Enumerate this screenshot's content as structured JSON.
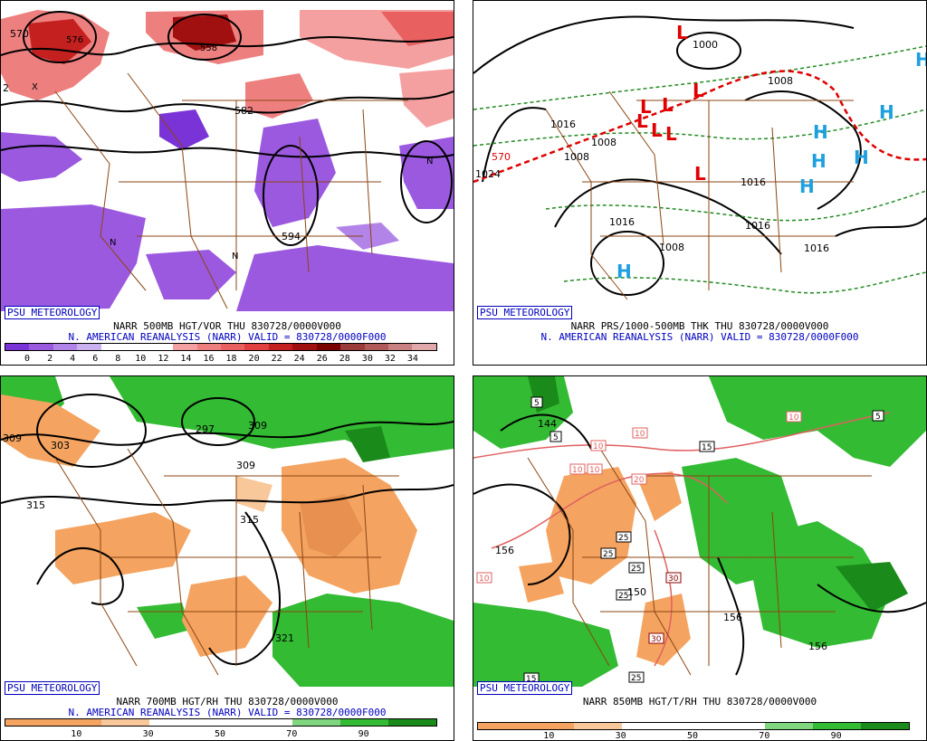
{
  "panels": [
    {
      "id": "500mb",
      "credit": "PSU METEOROLOGY",
      "line1": "NARR 500MB HGT/VOR THU 830728/0000V000",
      "line2": "N. AMERICAN REANALYSIS (NARR) VALID = 830728/0000F000",
      "colorbar": {
        "colors": [
          "#7a33d6",
          "#9b59e0",
          "#b384e8",
          "#cbb0f0",
          "#ffffff",
          "#ffffff",
          "#ffffff",
          "#f4a0a0",
          "#ee7f7f",
          "#e86060",
          "#e04040",
          "#c42020",
          "#a01010",
          "#7a0000",
          "#9a3a3a",
          "#b05a5a",
          "#c88080",
          "#e0a8a8"
        ],
        "ticks": [
          "0",
          "2",
          "4",
          "6",
          "8",
          "10",
          "12",
          "14",
          "16",
          "18",
          "20",
          "22",
          "24",
          "26",
          "28",
          "30",
          "32",
          "34"
        ]
      },
      "labels": [
        "570",
        "576",
        "558",
        "582",
        "594",
        "2",
        "X",
        "N",
        "N",
        "N"
      ]
    },
    {
      "id": "thickness",
      "credit": "PSU METEOROLOGY",
      "line1": "NARR PRS/1000-500MB THK THU 830728/0000V000",
      "line2": "N. AMERICAN REANALYSIS (NARR) VALID = 830728/0000F000",
      "labels": [
        "1000",
        "1008",
        "1016",
        "1024",
        "570",
        "1008",
        "1008",
        "1016",
        "1016",
        "1016",
        "1008",
        "1016"
      ],
      "lows": [
        "L",
        "L",
        "L",
        "L",
        "L",
        "L",
        "L",
        "L"
      ],
      "highs": [
        "H",
        "H",
        "H",
        "H",
        "H",
        "H",
        "H"
      ]
    },
    {
      "id": "700mb",
      "credit": "PSU METEOROLOGY",
      "line1": "NARR 700MB HGT/RH THU 830728/0000V000",
      "line2": "N. AMERICAN REANALYSIS (NARR) VALID = 830728/0000F000",
      "colorbar": {
        "colors": [
          "#f4a460",
          "#f4a460",
          "#f8c89a",
          "#ffffff",
          "#ffffff",
          "#ffffff",
          "#7fd67f",
          "#33bb33",
          "#1a8a1a"
        ],
        "ticks": [
          "10",
          "30",
          "50",
          "70",
          "90"
        ]
      },
      "labels": [
        "309",
        "303",
        "297",
        "309",
        "309",
        "315",
        "315",
        "321"
      ]
    },
    {
      "id": "850mb",
      "credit": "PSU METEOROLOGY",
      "line1": "NARR 850MB HGT/T/RH THU 830728/0000V000",
      "colorbar": {
        "colors": [
          "#f4a460",
          "#f4a460",
          "#f8c89a",
          "#ffffff",
          "#ffffff",
          "#ffffff",
          "#7fd67f",
          "#33bb33",
          "#1a8a1a"
        ],
        "ticks": [
          "10",
          "30",
          "50",
          "70",
          "90"
        ]
      },
      "labels": [
        "5",
        "5",
        "144",
        "10",
        "10",
        "10",
        "10",
        "10",
        "20",
        "15",
        "5",
        "25",
        "25",
        "25",
        "25",
        "30",
        "30",
        "25",
        "150",
        "156",
        "156",
        "156",
        "10",
        "15"
      ]
    }
  ]
}
